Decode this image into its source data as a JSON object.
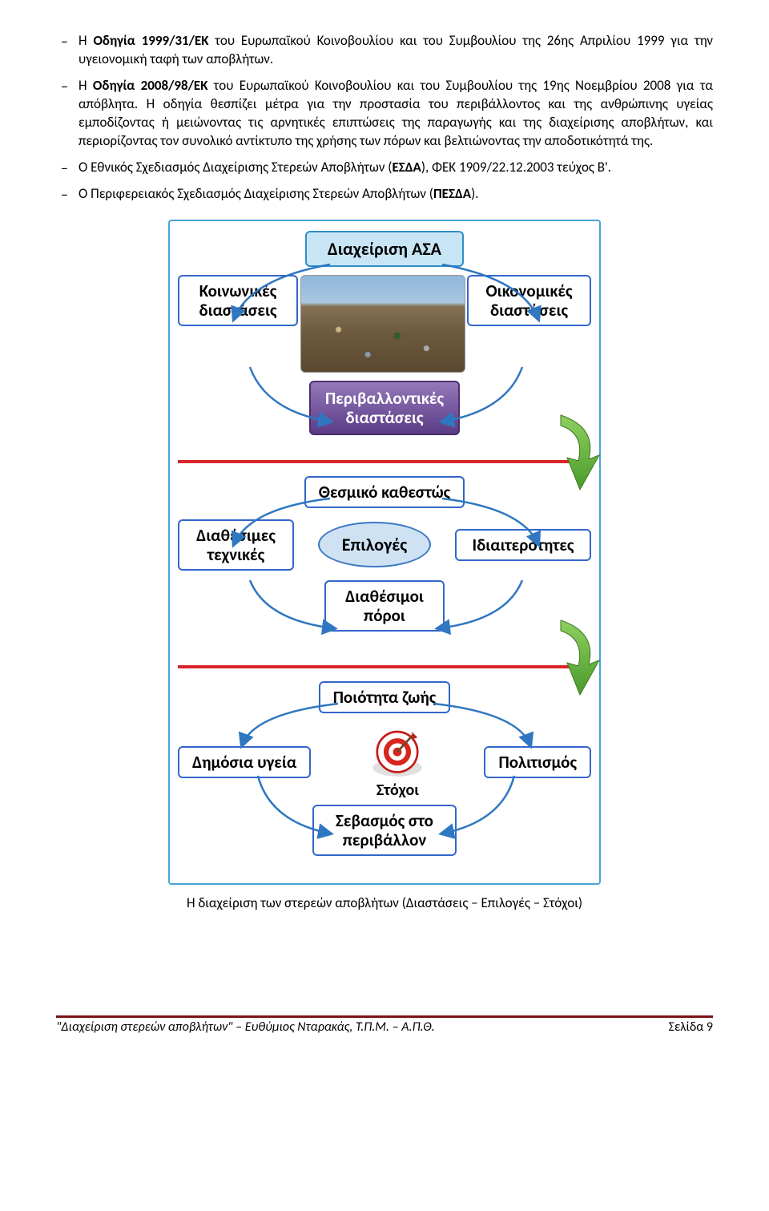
{
  "bullets": [
    {
      "pre": "Η ",
      "bold": "Οδηγία 1999/31/ΕΚ",
      "post": " του Ευρωπαϊκού Κοινοβουλίου και του Συμβουλίου της 26ης Απριλίου 1999 για την υγειονομική ταφή των αποβλήτων."
    },
    {
      "pre": "Η ",
      "bold": "Οδηγία 2008/98/ΕΚ",
      "post": " του Ευρωπαϊκού Κοινοβουλίου και του Συμβουλίου της 19ης Νοεμβρίου 2008 για τα απόβλητα. Η οδηγία θεσπίζει μέτρα για την προστασία του περιβάλλοντος και της ανθρώπινης υγείας εμποδίζοντας ή μειώνοντας τις αρνητικές επιπτώσεις της παραγωγής και της διαχείρισης αποβλήτων, και περιορίζοντας τον συνολικό αντίκτυπο της χρήσης των πόρων και βελτιώνοντας την αποδοτικότητά της."
    },
    {
      "pre": "Ο Εθνικός Σχεδιασμός Διαχείρισης Στερεών Αποβλήτων (",
      "bold": "ΕΣΔΑ",
      "post": "), ΦΕΚ 1909/22.12.2003 τεύχος Β'."
    },
    {
      "pre": "Ο Περιφερειακός Σχεδιασμός Διαχείρισης Στερεών Αποβλήτων (",
      "bold": "ΠΕΣΔΑ",
      "post": ")."
    }
  ],
  "diagram": {
    "title": "Διαχείριση ΑΣΑ",
    "sec1": {
      "left": "Κοινωνικές\nδιαστάσεις",
      "right": "Οικονομικές\nδιαστάσεις",
      "bottom": "Περιβαλλοντικές\nδιαστάσεις"
    },
    "sec2": {
      "top": "Θεσμικό καθεστώς",
      "left": "Διαθέσιμες\nτεχνικές",
      "center": "Επιλογές",
      "right": "Ιδιαιτερότητες",
      "bottom": "Διαθέσιμοι\nπόροι"
    },
    "sec3": {
      "top": "Ποιότητα ζωής",
      "left": "Δημόσια υγεία",
      "center_label": "Στόχοι",
      "right": "Πολιτισμός",
      "bottom": "Σεβασμός στο\nπεριβάλλον"
    },
    "arrow_color": "#5fae3b",
    "connector_color": "#2f77c0"
  },
  "caption": "Η διαχείριση των στερεών αποβλήτων (Διαστάσεις – Επιλογές – Στόχοι)",
  "footer_left": "\"Διαχείριση στερεών αποβλήτων\" – Ευθύμιος Νταρακάς, Τ.Π.Μ. – Α.Π.Θ.",
  "footer_right": "Σελίδα 9"
}
